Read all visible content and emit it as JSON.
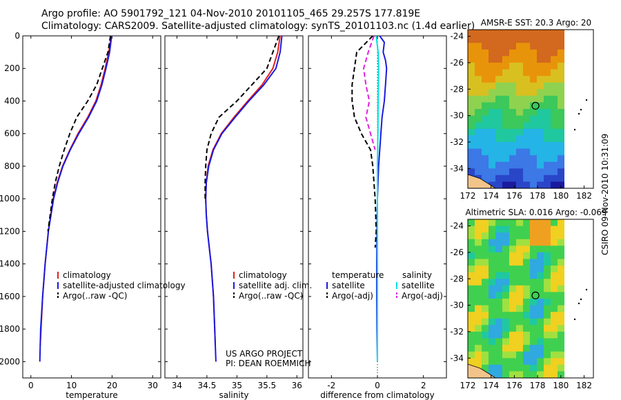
{
  "header": {
    "line1": "Argo profile: AO 5901792_121 04-Nov-2010 20101105_465 29.257S 177.819E",
    "line2": "Climatology: CARS2009. Satellite-adjusted climatology: synTS_20101103.nc (1.4d earlier)"
  },
  "side_label": "CSIRO 09-Nov-2010 10:31:09",
  "colors": {
    "clim": "#e02020",
    "sat": "#1a1ae0",
    "argo": "#000000",
    "sat_cyan": "#00e0e0",
    "argo_mag": "#e020e0"
  },
  "chart_data": [
    {
      "type": "line",
      "xlabel": "temperature",
      "ylabel": "",
      "xlim": [
        -2,
        32
      ],
      "ylim": [
        0,
        2100
      ],
      "xticks": [
        0,
        10,
        20,
        30
      ],
      "yticks": [
        0,
        200,
        400,
        600,
        800,
        1000,
        1200,
        1400,
        1600,
        1800,
        2000
      ],
      "legend": [
        "climatology",
        "satellite-adjusted climatology",
        "Argo(..raw -QC)"
      ],
      "series": [
        {
          "name": "climatology",
          "color": "#e02020",
          "dash": "",
          "depth": [
            0,
            100,
            200,
            300,
            400,
            500,
            600,
            700,
            800,
            900,
            1000,
            1200,
            1400,
            1600,
            1800,
            1900
          ],
          "values": [
            19.8,
            19.2,
            18.3,
            17.3,
            16.0,
            14.0,
            11.6,
            9.6,
            7.8,
            6.5,
            5.5,
            4.3,
            3.5,
            2.9,
            2.5,
            2.3
          ]
        },
        {
          "name": "satellite-adjusted climatology",
          "color": "#1a1ae0",
          "dash": "",
          "depth": [
            0,
            100,
            200,
            300,
            400,
            500,
            600,
            700,
            800,
            900,
            1000,
            1200,
            1400,
            1600,
            1800,
            2000
          ],
          "values": [
            19.9,
            19.4,
            18.5,
            17.5,
            16.2,
            14.2,
            11.8,
            9.7,
            7.9,
            6.6,
            5.6,
            4.3,
            3.5,
            2.9,
            2.4,
            2.2
          ]
        },
        {
          "name": "Argo(..raw -QC)",
          "color": "#000000",
          "dash": "7,4",
          "depth": [
            0,
            100,
            200,
            300,
            400,
            500,
            600,
            700,
            800,
            900,
            1000,
            1200
          ],
          "values": [
            19.6,
            19.0,
            17.6,
            16.2,
            14.0,
            11.3,
            9.6,
            8.2,
            7.0,
            6.0,
            5.3,
            4.2
          ]
        }
      ]
    },
    {
      "type": "line",
      "xlabel": "salinity",
      "ylabel": "",
      "xlim": [
        33.8,
        36.1
      ],
      "ylim": [
        0,
        2100
      ],
      "xticks": [
        34,
        34.5,
        35,
        35.5,
        36
      ],
      "yticks": [
        0,
        200,
        400,
        600,
        800,
        1000,
        1200,
        1400,
        1600,
        1800,
        2000
      ],
      "legend": [
        "climatology",
        "satellite adj. clim.",
        "Argo(..raw -QC)"
      ],
      "annotation": [
        "US ARGO PROJECT",
        "PI: DEAN ROEMMICH"
      ],
      "series": [
        {
          "name": "climatology",
          "color": "#e02020",
          "dash": "",
          "depth": [
            0,
            100,
            200,
            300,
            400,
            500,
            600,
            700,
            800,
            900,
            1000,
            1100,
            1200,
            1300,
            1400,
            1600,
            1800,
            1900
          ],
          "values": [
            35.72,
            35.68,
            35.6,
            35.42,
            35.18,
            34.95,
            34.74,
            34.6,
            34.52,
            34.49,
            34.48,
            34.49,
            34.51,
            34.54,
            34.57,
            34.61,
            34.63,
            34.64
          ]
        },
        {
          "name": "satellite adj. clim.",
          "color": "#1a1ae0",
          "dash": "",
          "depth": [
            0,
            100,
            200,
            300,
            400,
            500,
            600,
            700,
            800,
            900,
            1000,
            1100,
            1200,
            1300,
            1400,
            1600,
            1800,
            2000
          ],
          "values": [
            35.75,
            35.72,
            35.65,
            35.45,
            35.2,
            34.97,
            34.75,
            34.61,
            34.53,
            34.49,
            34.48,
            34.49,
            34.51,
            34.54,
            34.57,
            34.61,
            34.63,
            34.65
          ]
        },
        {
          "name": "Argo(..raw -QC)",
          "color": "#000000",
          "dash": "7,4",
          "depth": [
            0,
            100,
            200,
            300,
            400,
            500,
            600,
            700,
            800,
            900,
            1000
          ],
          "values": [
            35.7,
            35.6,
            35.5,
            35.25,
            35.0,
            34.7,
            34.57,
            34.5,
            34.48,
            34.47,
            34.47
          ]
        }
      ]
    },
    {
      "type": "line",
      "xlabel": "difference from climatology",
      "ylabel": "",
      "xlim": [
        -3,
        3
      ],
      "ylim": [
        0,
        2100
      ],
      "xticks": [
        -2,
        0,
        2
      ],
      "yticks": [
        0,
        200,
        400,
        600,
        800,
        1000,
        1200,
        1400,
        1600,
        1800,
        2000
      ],
      "legend_left": [
        "temperature",
        "satellite",
        "Argo(-adj)"
      ],
      "legend_right": [
        "salinity",
        "satellite",
        "Argo(-adj)"
      ],
      "series": [
        {
          "name": "temperature satellite",
          "color": "#1a1ae0",
          "dash": "",
          "depth": [
            0,
            40,
            100,
            150,
            200,
            300,
            400,
            500,
            600,
            800,
            1000,
            1200,
            1400,
            1600,
            1800,
            2000
          ],
          "values": [
            0.1,
            0.3,
            0.25,
            0.35,
            0.4,
            0.35,
            0.3,
            0.2,
            0.15,
            0.05,
            0.0,
            -0.02,
            -0.03,
            -0.03,
            -0.02,
            0.0
          ]
        },
        {
          "name": "temperature Argo(-adj)",
          "color": "#000000",
          "dash": "7,4",
          "depth": [
            0,
            100,
            200,
            300,
            400,
            500,
            600,
            700,
            800,
            900,
            1000,
            1200,
            1300
          ],
          "values": [
            -0.2,
            -0.9,
            -1.0,
            -1.1,
            -1.1,
            -1.0,
            -0.7,
            -0.3,
            -0.2,
            -0.15,
            -0.1,
            -0.05,
            -0.1
          ]
        },
        {
          "name": "salinity satellite",
          "color": "#00e0e0",
          "dash": "",
          "depth": [
            0,
            100,
            200,
            400,
            600,
            800,
            1000,
            1400,
            1800,
            2000
          ],
          "values": [
            -0.05,
            0.03,
            0.05,
            0.03,
            0.02,
            0.0,
            0.0,
            0.0,
            0.0,
            0.0
          ]
        },
        {
          "name": "salinity Argo(-adj)",
          "color": "#e020e0",
          "dash": "7,4",
          "depth": [
            0,
            100,
            200,
            300,
            400,
            500,
            600,
            700
          ],
          "values": [
            -0.15,
            -0.4,
            -0.6,
            -0.5,
            -0.35,
            -0.5,
            -0.3,
            -0.1
          ]
        }
      ]
    },
    {
      "type": "heatmap",
      "title": "AMSR-E SST: 20.3 Argo: 20",
      "xlim": [
        172,
        182
      ],
      "ylim": [
        -35.5,
        -23.5
      ],
      "xticks": [
        172,
        174,
        176,
        178,
        180,
        182
      ],
      "yticks": [
        -24,
        -26,
        -28,
        -30,
        -32,
        -34
      ],
      "marker": {
        "lon": 177.819,
        "lat": -29.257
      }
    },
    {
      "type": "heatmap",
      "title": "Altimetric SLA: 0.016 Argo: -0.069",
      "xlim": [
        172,
        182
      ],
      "ylim": [
        -35.5,
        -23.5
      ],
      "xticks": [
        172,
        174,
        176,
        178,
        180,
        182
      ],
      "yticks": [
        -24,
        -26,
        -28,
        -30,
        -32,
        -34
      ],
      "marker": {
        "lon": 177.819,
        "lat": -29.257
      }
    }
  ]
}
